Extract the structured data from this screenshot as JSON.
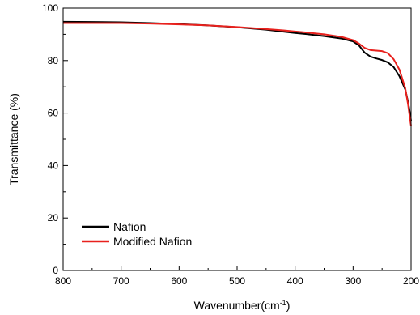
{
  "chart_data": {
    "type": "line",
    "title": "",
    "xlabel": "Wavenumber(cm",
    "xlabel_sup": "-1",
    "xlabel_suffix": ")",
    "ylabel": "Transmittance (%)",
    "xlim": [
      800,
      200
    ],
    "ylim": [
      0,
      100
    ],
    "x_ticks": [
      "800",
      "700",
      "600",
      "500",
      "400",
      "300",
      "200"
    ],
    "y_ticks": [
      "0",
      "20",
      "40",
      "60",
      "80",
      "100"
    ],
    "grid": false,
    "legend_position": "bottom-left",
    "series": [
      {
        "name": "Nafion",
        "color": "#000000",
        "x": [
          800,
          750,
          700,
          650,
          600,
          550,
          500,
          450,
          420,
          400,
          380,
          350,
          320,
          300,
          290,
          280,
          270,
          260,
          250,
          240,
          230,
          220,
          210,
          205,
          202,
          200
        ],
        "y": [
          94.8,
          94.7,
          94.6,
          94.3,
          93.9,
          93.4,
          92.7,
          91.8,
          91.0,
          90.5,
          90.1,
          89.3,
          88.4,
          87.3,
          85.8,
          83.0,
          81.5,
          80.8,
          80.2,
          79.3,
          77.5,
          74.0,
          69.0,
          64.0,
          60.0,
          57.0
        ]
      },
      {
        "name": "Modified Nafion",
        "color": "#e8211d",
        "x": [
          800,
          750,
          700,
          650,
          600,
          550,
          500,
          450,
          420,
          400,
          380,
          350,
          320,
          300,
          290,
          280,
          270,
          260,
          250,
          240,
          230,
          220,
          210,
          205,
          202,
          200
        ],
        "y": [
          94.3,
          94.3,
          94.3,
          94.1,
          93.8,
          93.4,
          92.8,
          92.0,
          91.5,
          91.1,
          90.7,
          90.0,
          89.0,
          87.8,
          86.5,
          84.8,
          84.0,
          83.8,
          83.6,
          82.8,
          80.5,
          76.5,
          69.5,
          63.0,
          58.0,
          55.0
        ]
      }
    ]
  }
}
